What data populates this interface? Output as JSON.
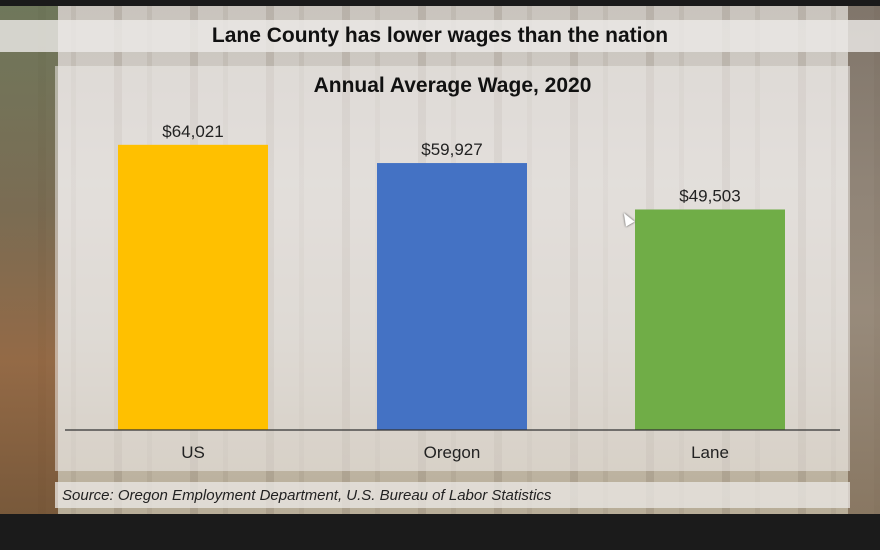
{
  "slide": {
    "title": "Lane County has lower wages than the nation",
    "source": "Source: Oregon Employment Department, U.S. Bureau of Labor Statistics"
  },
  "chart_data": {
    "type": "bar",
    "title": "Annual Average Wage, 2020",
    "categories": [
      "US",
      "Oregon",
      "Lane"
    ],
    "values": [
      64021,
      59927,
      49503
    ],
    "value_labels": [
      "$64,021",
      "$59,927",
      "$49,503"
    ],
    "colors": [
      "#FFC000",
      "#4472C4",
      "#70AD47"
    ],
    "xlabel": "",
    "ylabel": "",
    "ylim": [
      0,
      66000
    ],
    "grid": false,
    "legend": "none"
  }
}
